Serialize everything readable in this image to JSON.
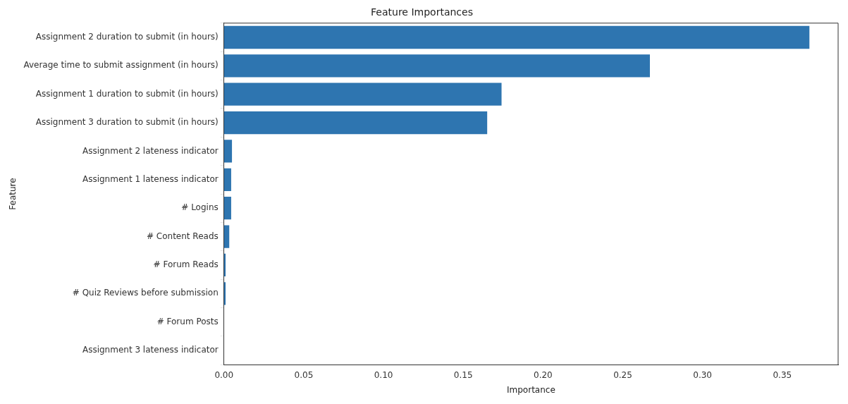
{
  "chart_data": {
    "type": "bar",
    "orientation": "horizontal",
    "title": "Feature Importances",
    "xlabel": "Importance",
    "ylabel": "Feature",
    "categories": [
      "Assignment 2 duration to submit (in hours)",
      "Average time to submit assignment (in hours)",
      "Assignment 1 duration to submit (in hours)",
      "Assignment 3 duration to submit (in hours)",
      "Assignment 2 lateness indicator",
      "Assignment 1 lateness indicator",
      "# Logins",
      "# Content Reads",
      "# Forum Reads",
      "# Quiz Reviews before submission",
      "# Forum Posts",
      "Assignment 3 lateness indicator"
    ],
    "values": [
      0.367,
      0.267,
      0.174,
      0.165,
      0.005,
      0.0045,
      0.0045,
      0.0033,
      0.001,
      0.001,
      0,
      0
    ],
    "color": "#2e75b0",
    "xlim": [
      0,
      0.385
    ],
    "xticks": [
      {
        "value": 0,
        "label": "0.00"
      },
      {
        "value": 0.05,
        "label": "0.05"
      },
      {
        "value": 0.1,
        "label": "0.10"
      },
      {
        "value": 0.15,
        "label": "0.15"
      },
      {
        "value": 0.2,
        "label": "0.20"
      },
      {
        "value": 0.25,
        "label": "0.25"
      },
      {
        "value": 0.3,
        "label": "0.30"
      },
      {
        "value": 0.35,
        "label": "0.35"
      }
    ],
    "grid": false,
    "legend": false
  }
}
